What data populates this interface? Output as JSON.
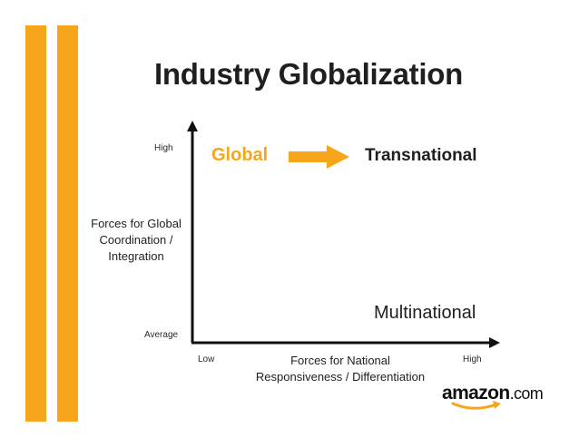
{
  "title": "Industry Globalization",
  "y_axis": {
    "label": "Forces for Global Coordination / Integration",
    "label_lines": [
      "Forces for Global",
      "Coordination /",
      "Integration"
    ],
    "tick_high": "High",
    "tick_low": "Average"
  },
  "x_axis": {
    "label_lines": [
      "Forces for National",
      "Responsiveness / Differentiation"
    ],
    "tick_low": "Low",
    "tick_high": "High"
  },
  "quadrants": {
    "global": "Global",
    "transnational": "Transnational",
    "multinational": "Multinational"
  },
  "logo": {
    "brand": "amazon",
    "suffix": ".com"
  },
  "colors": {
    "accent": "#f7a51a",
    "text": "#1f1f1f"
  }
}
